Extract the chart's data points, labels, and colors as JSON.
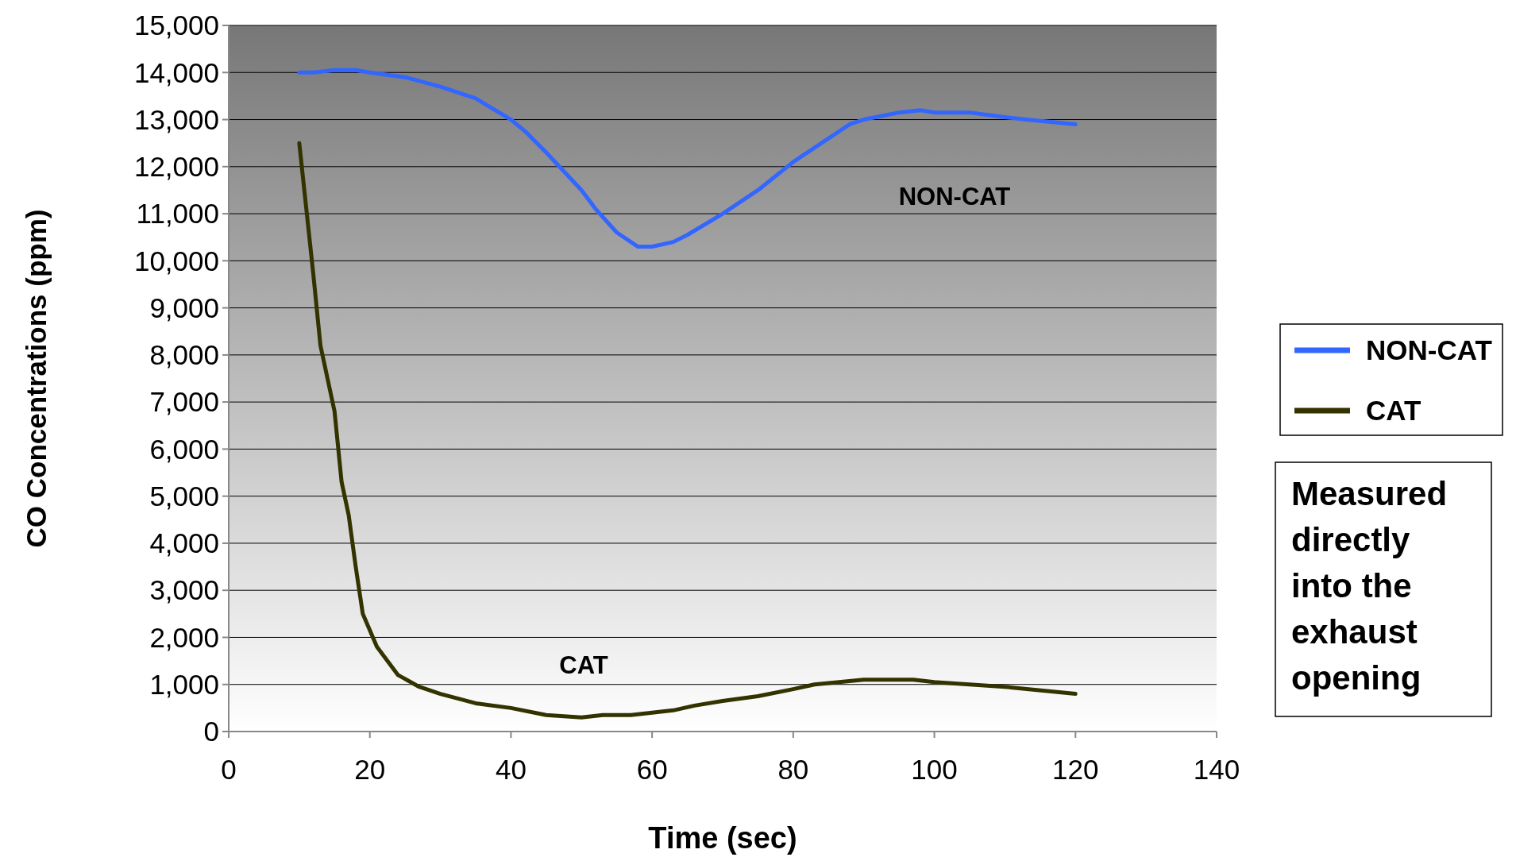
{
  "chart_data": {
    "type": "line",
    "xlabel": "Time (sec)",
    "ylabel": "CO Concentrations (ppm)",
    "xlim": [
      0,
      140
    ],
    "xticks": [
      0,
      20,
      40,
      60,
      80,
      100,
      120,
      140
    ],
    "ylim": [
      0,
      15000
    ],
    "yticks": [
      {
        "value": 0,
        "label": "0"
      },
      {
        "value": 1000,
        "label": "1,000"
      },
      {
        "value": 2000,
        "label": "2,000"
      },
      {
        "value": 3000,
        "label": "3,000"
      },
      {
        "value": 4000,
        "label": "4,000"
      },
      {
        "value": 5000,
        "label": "5,000"
      },
      {
        "value": 6000,
        "label": "6,000"
      },
      {
        "value": 7000,
        "label": "7,000"
      },
      {
        "value": 8000,
        "label": "8,000"
      },
      {
        "value": 9000,
        "label": "9,000"
      },
      {
        "value": 10000,
        "label": "10,000"
      },
      {
        "value": 11000,
        "label": "11,000"
      },
      {
        "value": 12000,
        "label": "12,000"
      },
      {
        "value": 13000,
        "label": "13,000"
      },
      {
        "value": 14000,
        "label": "14,000"
      },
      {
        "value": 15000,
        "label": "15,000"
      }
    ],
    "grid": "y",
    "legend": "right",
    "marker": "none",
    "line_style": "solid",
    "series": [
      {
        "name": "NON-CAT",
        "color": "#3366ff",
        "x": [
          10,
          12,
          15,
          18,
          20,
          25,
          30,
          35,
          40,
          42,
          45,
          50,
          52,
          55,
          58,
          60,
          63,
          65,
          70,
          75,
          80,
          83,
          88,
          90,
          95,
          98,
          100,
          105,
          110,
          113,
          120
        ],
        "values": [
          14000,
          14000,
          14050,
          14050,
          14000,
          13900,
          13700,
          13450,
          13000,
          12750,
          12300,
          11500,
          11100,
          10600,
          10300,
          10300,
          10400,
          10550,
          11000,
          11500,
          12100,
          12400,
          12900,
          13000,
          13150,
          13200,
          13150,
          13150,
          13050,
          13000,
          12900
        ]
      },
      {
        "name": "CAT",
        "color": "#333300",
        "x": [
          10,
          12,
          13,
          15,
          16,
          17,
          18,
          19,
          21,
          24,
          27,
          30,
          35,
          40,
          45,
          50,
          53,
          57,
          60,
          63,
          66,
          70,
          75,
          80,
          83,
          90,
          97,
          100,
          105,
          110,
          120
        ],
        "values": [
          12500,
          9700,
          8200,
          6800,
          5300,
          4600,
          3500,
          2500,
          1800,
          1200,
          950,
          800,
          600,
          500,
          350,
          300,
          350,
          350,
          400,
          450,
          550,
          650,
          750,
          900,
          1000,
          1100,
          1100,
          1050,
          1000,
          950,
          800
        ]
      }
    ],
    "annotations": [
      "NON-CAT",
      "CAT",
      "Measured directly into the exhaust opening"
    ]
  }
}
